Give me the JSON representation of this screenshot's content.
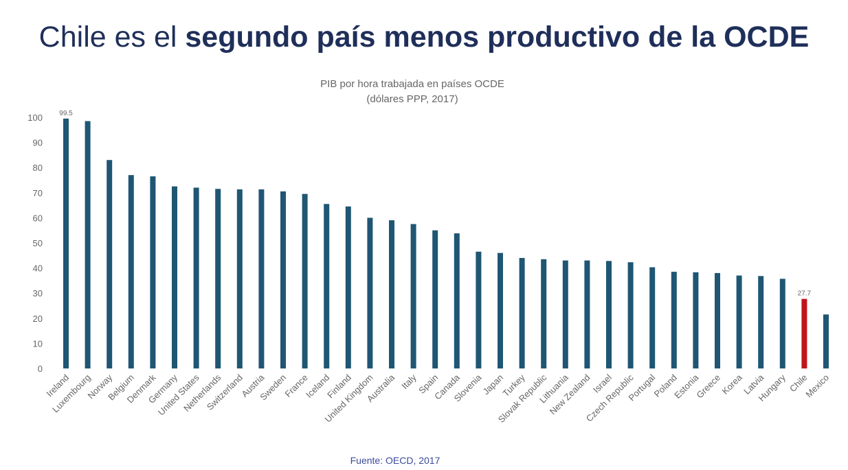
{
  "headline": {
    "prefix": "Chile es el ",
    "bold": "segundo país menos productivo de la OCDE"
  },
  "source_note": "Fuente: OECD, 2017",
  "colors": {
    "bar": "#1f5673",
    "highlight": "#c0151b",
    "headline": "#1f2f5a",
    "source_note": "#3a4b9a"
  },
  "chart_data": {
    "type": "bar",
    "title": "PIB por hora trabajada en países OCDE",
    "subtitle": "(dólares PPP, 2017)",
    "xlabel": "",
    "ylabel": "",
    "ylim": [
      0,
      100
    ],
    "yticks": [
      0,
      10,
      20,
      30,
      40,
      50,
      60,
      70,
      80,
      90,
      100
    ],
    "grid": false,
    "legend": "none",
    "categories": [
      "Ireland",
      "Luxembourg",
      "Norway",
      "Belgium",
      "Denmark",
      "Germany",
      "United States",
      "Netherlands",
      "Switzerland",
      "Austria",
      "Sweden",
      "France",
      "Iceland",
      "Finland",
      "United Kingdom",
      "Australia",
      "Italy",
      "Spain",
      "Canada",
      "Slovenia",
      "Japan",
      "Turkey",
      "Slovak Republic",
      "Lithuania",
      "New Zealand",
      "Israel",
      "Czech Republic",
      "Portugal",
      "Poland",
      "Estonia",
      "Greece",
      "Korea",
      "Latvia",
      "Hungary",
      "Chile",
      "Mexico"
    ],
    "values": [
      99.5,
      98.5,
      83,
      77,
      76.5,
      72.5,
      72,
      71.5,
      71.3,
      71.3,
      70.5,
      69.5,
      65.5,
      64.5,
      60,
      59,
      57.5,
      55,
      53.8,
      46.5,
      46,
      44,
      43.5,
      43,
      43,
      42.8,
      42.3,
      40.3,
      38.5,
      38.3,
      38,
      37,
      36.8,
      35.7,
      27.7,
      21.5
    ],
    "highlight": "Chile",
    "data_labels": [
      {
        "category": "Ireland",
        "text": "99.5"
      },
      {
        "category": "Chile",
        "text": "27.7"
      }
    ]
  }
}
